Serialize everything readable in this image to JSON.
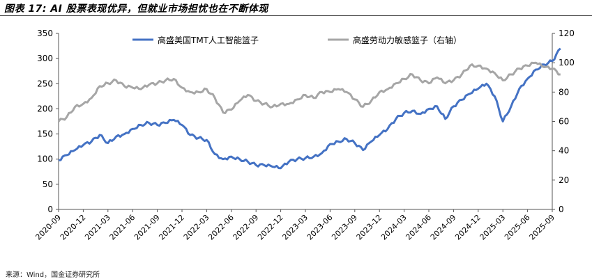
{
  "title": "图表 17: AI 股票表现优异，但就业市场担忧也在不断体现",
  "source": "来源：Wind，国金证券研究所",
  "chart_data": {
    "type": "line",
    "title": "图表 17: AI 股票表现优异，但就业市场担忧也在不断体现",
    "x_tick_labels": [
      "2020-09",
      "2020-12",
      "2021-03",
      "2021-06",
      "2021-09",
      "2021-12",
      "2022-03",
      "2022-06",
      "2022-09",
      "2022-12",
      "2023-03",
      "2023-06",
      "2023-09",
      "2023-12",
      "2024-03",
      "2024-06",
      "2024-09",
      "2024-12",
      "2025-03",
      "2025-06",
      "2025-09"
    ],
    "y_left": {
      "min": 0,
      "max": 350,
      "ticks": [
        0,
        50,
        100,
        150,
        200,
        250,
        300,
        350
      ]
    },
    "y_right": {
      "min": 0,
      "max": 120,
      "ticks": [
        0,
        20,
        40,
        60,
        80,
        100,
        120
      ]
    },
    "grid": false,
    "legend_position": "top",
    "series": [
      {
        "name": "高盛美国TMT人工智能篮子",
        "axis": "left",
        "color": "#4472C4",
        "x": [
          "2020-09",
          "2020-10",
          "2020-11",
          "2020-12",
          "2021-01",
          "2021-02",
          "2021-03",
          "2021-04",
          "2021-05",
          "2021-06",
          "2021-07",
          "2021-08",
          "2021-09",
          "2021-10",
          "2021-11",
          "2021-12",
          "2022-01",
          "2022-02",
          "2022-03",
          "2022-04",
          "2022-05",
          "2022-06",
          "2022-07",
          "2022-08",
          "2022-09",
          "2022-10",
          "2022-11",
          "2022-12",
          "2023-01",
          "2023-02",
          "2023-03",
          "2023-04",
          "2023-05",
          "2023-06",
          "2023-07",
          "2023-08",
          "2023-09",
          "2023-10",
          "2023-11",
          "2023-12",
          "2024-01",
          "2024-02",
          "2024-03",
          "2024-04",
          "2024-05",
          "2024-06",
          "2024-07",
          "2024-08",
          "2024-09",
          "2024-10",
          "2024-11",
          "2024-12",
          "2025-01",
          "2025-02",
          "2025-03",
          "2025-04",
          "2025-05",
          "2025-06",
          "2025-07",
          "2025-08",
          "2025-09",
          "2025-10"
        ],
        "values": [
          98,
          108,
          118,
          128,
          135,
          148,
          132,
          145,
          150,
          160,
          168,
          172,
          168,
          172,
          178,
          168,
          148,
          142,
          138,
          110,
          100,
          105,
          100,
          95,
          88,
          88,
          85,
          82,
          95,
          100,
          102,
          105,
          112,
          130,
          135,
          140,
          132,
          118,
          135,
          148,
          160,
          180,
          192,
          196,
          190,
          200,
          205,
          180,
          205,
          218,
          230,
          240,
          250,
          225,
          175,
          205,
          240,
          260,
          278,
          288,
          295,
          320
        ]
      },
      {
        "name": "高盛劳动力敏感篮子（右轴）",
        "axis": "right",
        "color": "#A6A6A6",
        "x": [
          "2020-09",
          "2020-10",
          "2020-11",
          "2020-12",
          "2021-01",
          "2021-02",
          "2021-03",
          "2021-04",
          "2021-05",
          "2021-06",
          "2021-07",
          "2021-08",
          "2021-09",
          "2021-10",
          "2021-11",
          "2021-12",
          "2022-01",
          "2022-02",
          "2022-03",
          "2022-04",
          "2022-05",
          "2022-06",
          "2022-07",
          "2022-08",
          "2022-09",
          "2022-10",
          "2022-11",
          "2022-12",
          "2023-01",
          "2023-02",
          "2023-03",
          "2023-04",
          "2023-05",
          "2023-06",
          "2023-07",
          "2023-08",
          "2023-09",
          "2023-10",
          "2023-11",
          "2023-12",
          "2024-01",
          "2024-02",
          "2024-03",
          "2024-04",
          "2024-05",
          "2024-06",
          "2024-07",
          "2024-08",
          "2024-09",
          "2024-10",
          "2024-11",
          "2024-12",
          "2025-01",
          "2025-02",
          "2025-03",
          "2025-04",
          "2025-05",
          "2025-06",
          "2025-07",
          "2025-08",
          "2025-09",
          "2025-10"
        ],
        "values": [
          60,
          63,
          70,
          72,
          76,
          84,
          86,
          88,
          84,
          83,
          82,
          85,
          86,
          88,
          89,
          83,
          80,
          80,
          82,
          76,
          66,
          68,
          74,
          78,
          74,
          72,
          70,
          72,
          72,
          75,
          78,
          76,
          80,
          80,
          82,
          80,
          75,
          70,
          74,
          80,
          82,
          86,
          89,
          92,
          88,
          86,
          90,
          86,
          88,
          92,
          98,
          98,
          96,
          93,
          88,
          92,
          96,
          98,
          100,
          97,
          96,
          92
        ]
      }
    ]
  }
}
